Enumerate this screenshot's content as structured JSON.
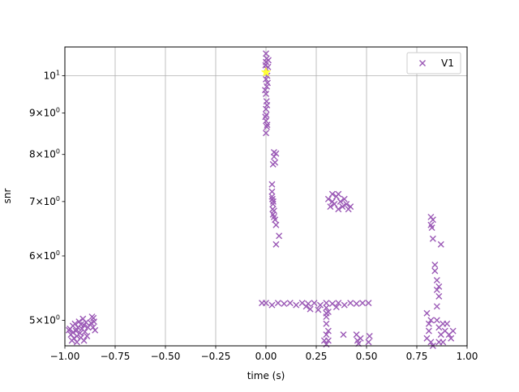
{
  "chart_data": {
    "type": "scatter",
    "title": "",
    "xlabel": "time (s)",
    "ylabel": "snr",
    "xlim": [
      -1.0,
      1.0
    ],
    "ylim": [
      4.65,
      10.85
    ],
    "yscale": "log",
    "grid": true,
    "legend_position": "upper right",
    "x_ticks": [
      {
        "value": -1.0,
        "label": "−1.00"
      },
      {
        "value": -0.75,
        "label": "−0.75"
      },
      {
        "value": -0.5,
        "label": "−0.50"
      },
      {
        "value": -0.25,
        "label": "−0.25"
      },
      {
        "value": 0.0,
        "label": "0.00"
      },
      {
        "value": 0.25,
        "label": "0.25"
      },
      {
        "value": 0.5,
        "label": "0.50"
      },
      {
        "value": 0.75,
        "label": "0.75"
      },
      {
        "value": 1.0,
        "label": "1.00"
      }
    ],
    "y_ticks": [
      {
        "value": 5,
        "label_main": "5×10",
        "label_exp": "0"
      },
      {
        "value": 6,
        "label_main": "6×10",
        "label_exp": "0"
      },
      {
        "value": 7,
        "label_main": "7×10",
        "label_exp": "0"
      },
      {
        "value": 8,
        "label_main": "8×10",
        "label_exp": "0"
      },
      {
        "value": 9,
        "label_main": "9×10",
        "label_exp": "0"
      },
      {
        "value": 10,
        "label_main": "10",
        "label_exp": "1"
      }
    ],
    "series": [
      {
        "name": "V1",
        "marker": "x",
        "color": "#9b59b6",
        "points": [
          [
            -0.98,
            4.86
          ],
          [
            -0.97,
            4.8
          ],
          [
            -0.96,
            4.92
          ],
          [
            -0.955,
            4.75
          ],
          [
            -0.95,
            4.95
          ],
          [
            -0.945,
            4.85
          ],
          [
            -0.94,
            4.7
          ],
          [
            -0.935,
            4.9
          ],
          [
            -0.93,
            4.98
          ],
          [
            -0.925,
            4.82
          ],
          [
            -0.92,
            4.76
          ],
          [
            -0.915,
            4.88
          ],
          [
            -0.91,
            5.02
          ],
          [
            -0.905,
            4.93
          ],
          [
            -0.9,
            4.84
          ],
          [
            -0.895,
            4.97
          ],
          [
            -0.89,
            4.78
          ],
          [
            -0.885,
            4.9
          ],
          [
            -0.965,
            4.72
          ],
          [
            -0.975,
            4.88
          ],
          [
            -0.96,
            4.83
          ],
          [
            -0.94,
            4.78
          ],
          [
            -0.92,
            4.94
          ],
          [
            -0.905,
            4.72
          ],
          [
            -0.87,
            4.96
          ],
          [
            -0.865,
            5.05
          ],
          [
            -0.86,
            4.9
          ],
          [
            -0.855,
            4.98
          ],
          [
            -0.85,
            4.86
          ],
          [
            -0.858,
            5.03
          ],
          [
            0.0,
            10.65
          ],
          [
            0.0,
            10.4
          ],
          [
            0.002,
            10.2
          ],
          [
            0.0,
            9.9
          ],
          [
            0.004,
            9.7
          ],
          [
            0.0,
            9.5
          ],
          [
            0.003,
            9.3
          ],
          [
            0.0,
            9.1
          ],
          [
            0.002,
            8.95
          ],
          [
            0.0,
            8.8
          ],
          [
            0.004,
            8.65
          ],
          [
            0.0,
            8.5
          ],
          [
            0.003,
            10.5
          ],
          [
            0.006,
            10.0
          ],
          [
            -0.004,
            9.6
          ],
          [
            0.005,
            9.2
          ],
          [
            -0.003,
            8.9
          ],
          [
            0.006,
            8.7
          ],
          [
            -0.002,
            10.3
          ],
          [
            0.008,
            9.8
          ],
          [
            0.01,
            10.25
          ],
          [
            0.012,
            10.45
          ],
          [
            0.04,
            8.05
          ],
          [
            0.05,
            8.02
          ],
          [
            0.035,
            7.78
          ],
          [
            0.045,
            7.82
          ],
          [
            0.04,
            7.95
          ],
          [
            0.03,
            7.35
          ],
          [
            0.03,
            7.2
          ],
          [
            0.032,
            7.05
          ],
          [
            0.035,
            6.95
          ],
          [
            0.033,
            6.85
          ],
          [
            0.035,
            6.75
          ],
          [
            0.04,
            6.7
          ],
          [
            0.045,
            6.65
          ],
          [
            0.05,
            6.55
          ],
          [
            0.03,
            7.1
          ],
          [
            0.036,
            7.0
          ],
          [
            0.04,
            6.82
          ],
          [
            0.065,
            6.35
          ],
          [
            0.05,
            6.2
          ],
          [
            0.31,
            7.05
          ],
          [
            0.32,
            6.9
          ],
          [
            0.33,
            7.0
          ],
          [
            0.34,
            6.95
          ],
          [
            0.35,
            7.1
          ],
          [
            0.36,
            6.85
          ],
          [
            0.37,
            7.0
          ],
          [
            0.38,
            6.9
          ],
          [
            0.39,
            7.05
          ],
          [
            0.4,
            6.95
          ],
          [
            0.41,
            6.85
          ],
          [
            0.42,
            6.9
          ],
          [
            0.33,
            7.15
          ],
          [
            0.36,
            7.15
          ],
          [
            -0.02,
            5.25
          ],
          [
            0.0,
            5.25
          ],
          [
            0.03,
            5.22
          ],
          [
            0.06,
            5.25
          ],
          [
            0.09,
            5.24
          ],
          [
            0.12,
            5.25
          ],
          [
            0.15,
            5.22
          ],
          [
            0.18,
            5.25
          ],
          [
            0.21,
            5.24
          ],
          [
            0.24,
            5.25
          ],
          [
            0.27,
            5.22
          ],
          [
            0.3,
            5.25
          ],
          [
            0.33,
            5.24
          ],
          [
            0.36,
            5.25
          ],
          [
            0.39,
            5.22
          ],
          [
            0.42,
            5.25
          ],
          [
            0.45,
            5.24
          ],
          [
            0.48,
            5.25
          ],
          [
            0.51,
            5.25
          ],
          [
            0.2,
            5.2
          ],
          [
            0.35,
            5.19
          ],
          [
            0.22,
            5.16
          ],
          [
            0.26,
            5.15
          ],
          [
            0.3,
            5.18
          ],
          [
            0.29,
            4.72
          ],
          [
            0.3,
            4.8
          ],
          [
            0.3,
            4.95
          ],
          [
            0.3,
            5.05
          ],
          [
            0.31,
            4.85
          ],
          [
            0.31,
            5.12
          ],
          [
            0.3,
            4.67
          ],
          [
            0.31,
            4.72
          ],
          [
            0.3,
            5.1
          ],
          [
            0.385,
            4.8
          ],
          [
            0.45,
            4.8
          ],
          [
            0.455,
            4.72
          ],
          [
            0.46,
            4.68
          ],
          [
            0.47,
            4.75
          ],
          [
            0.515,
            4.78
          ],
          [
            0.51,
            4.7
          ],
          [
            0.82,
            6.7
          ],
          [
            0.825,
            6.5
          ],
          [
            0.83,
            6.3
          ],
          [
            0.82,
            6.55
          ],
          [
            0.83,
            6.65
          ],
          [
            0.87,
            6.2
          ],
          [
            0.84,
            5.85
          ],
          [
            0.85,
            5.6
          ],
          [
            0.85,
            5.45
          ],
          [
            0.86,
            5.35
          ],
          [
            0.84,
            5.75
          ],
          [
            0.85,
            5.2
          ],
          [
            0.86,
            5.5
          ],
          [
            0.8,
            5.1
          ],
          [
            0.82,
            5.0
          ],
          [
            0.81,
            4.85
          ],
          [
            0.8,
            4.75
          ],
          [
            0.82,
            4.7
          ],
          [
            0.83,
            4.65
          ],
          [
            0.81,
            4.95
          ],
          [
            0.85,
            5.0
          ],
          [
            0.86,
            4.9
          ],
          [
            0.87,
            4.8
          ],
          [
            0.88,
            4.7
          ],
          [
            0.89,
            4.85
          ],
          [
            0.9,
            4.95
          ],
          [
            0.91,
            4.8
          ],
          [
            0.92,
            4.75
          ],
          [
            0.93,
            4.85
          ],
          [
            0.88,
            4.95
          ],
          [
            0.86,
            4.7
          ]
        ]
      }
    ],
    "highlight": {
      "marker": "star",
      "color": "#ffff33",
      "x": 0.0,
      "y": 10.1
    }
  }
}
